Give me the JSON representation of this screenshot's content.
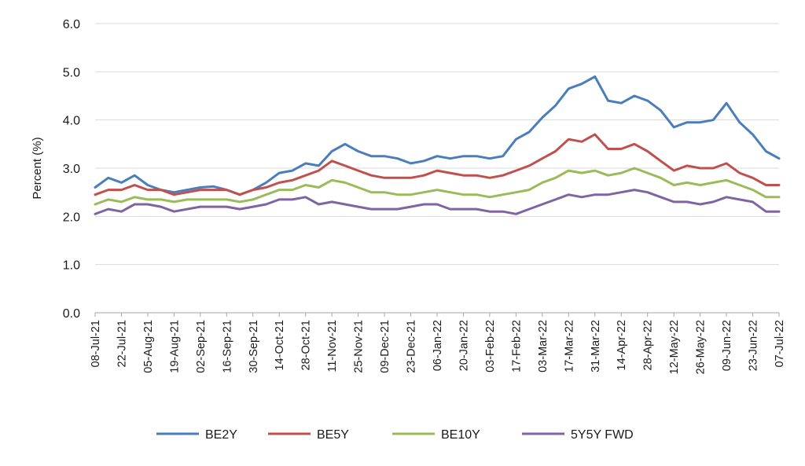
{
  "chart_data": {
    "type": "line",
    "title": "",
    "xlabel": "",
    "ylabel": "Percent (%)",
    "ylim": [
      0,
      6
    ],
    "y_ticks": [
      "0.0",
      "1.0",
      "2.0",
      "3.0",
      "4.0",
      "5.0",
      "6.0"
    ],
    "grid": "horizontal",
    "legend_position": "bottom",
    "x_tick_labels": [
      "08-Jul-21",
      "22-Jul-21",
      "05-Aug-21",
      "19-Aug-21",
      "02-Sep-21",
      "16-Sep-21",
      "30-Sep-21",
      "14-Oct-21",
      "28-Oct-21",
      "11-Nov-21",
      "25-Nov-21",
      "09-Dec-21",
      "23-Dec-21",
      "06-Jan-22",
      "20-Jan-22",
      "03-Feb-22",
      "17-Feb-22",
      "03-Mar-22",
      "17-Mar-22",
      "31-Mar-22",
      "14-Apr-22",
      "28-Apr-22",
      "12-May-22",
      "26-May-22",
      "09-Jun-22",
      "23-Jun-22",
      "07-Jul-22"
    ],
    "x_dates": [
      "08-Jul-21",
      "15-Jul-21",
      "22-Jul-21",
      "29-Jul-21",
      "05-Aug-21",
      "12-Aug-21",
      "19-Aug-21",
      "26-Aug-21",
      "02-Sep-21",
      "09-Sep-21",
      "16-Sep-21",
      "23-Sep-21",
      "30-Sep-21",
      "07-Oct-21",
      "14-Oct-21",
      "21-Oct-21",
      "28-Oct-21",
      "04-Nov-21",
      "11-Nov-21",
      "18-Nov-21",
      "25-Nov-21",
      "02-Dec-21",
      "09-Dec-21",
      "16-Dec-21",
      "23-Dec-21",
      "30-Dec-21",
      "06-Jan-22",
      "13-Jan-22",
      "20-Jan-22",
      "27-Jan-22",
      "03-Feb-22",
      "10-Feb-22",
      "17-Feb-22",
      "24-Feb-22",
      "03-Mar-22",
      "10-Mar-22",
      "17-Mar-22",
      "24-Mar-22",
      "31-Mar-22",
      "07-Apr-22",
      "14-Apr-22",
      "21-Apr-22",
      "28-Apr-22",
      "05-May-22",
      "12-May-22",
      "19-May-22",
      "26-May-22",
      "02-Jun-22",
      "09-Jun-22",
      "16-Jun-22",
      "23-Jun-22",
      "30-Jun-22",
      "07-Jul-22"
    ],
    "series": [
      {
        "name": "BE2Y",
        "color": "#4a7ebb",
        "values": [
          2.6,
          2.8,
          2.7,
          2.85,
          2.65,
          2.55,
          2.5,
          2.55,
          2.6,
          2.62,
          2.55,
          2.45,
          2.55,
          2.7,
          2.9,
          2.95,
          3.1,
          3.05,
          3.35,
          3.5,
          3.35,
          3.25,
          3.25,
          3.2,
          3.1,
          3.15,
          3.25,
          3.2,
          3.25,
          3.25,
          3.2,
          3.25,
          3.6,
          3.75,
          4.05,
          4.3,
          4.65,
          4.75,
          4.9,
          4.4,
          4.35,
          4.5,
          4.4,
          4.2,
          3.85,
          3.95,
          3.95,
          4.0,
          4.35,
          3.95,
          3.7,
          3.35,
          3.2
        ]
      },
      {
        "name": "BE5Y",
        "color": "#c0504d",
        "values": [
          2.45,
          2.55,
          2.55,
          2.65,
          2.55,
          2.55,
          2.45,
          2.5,
          2.55,
          2.55,
          2.55,
          2.45,
          2.55,
          2.6,
          2.7,
          2.75,
          2.85,
          2.95,
          3.15,
          3.05,
          2.95,
          2.85,
          2.8,
          2.8,
          2.8,
          2.85,
          2.95,
          2.9,
          2.85,
          2.85,
          2.8,
          2.85,
          2.95,
          3.05,
          3.2,
          3.35,
          3.6,
          3.55,
          3.7,
          3.4,
          3.4,
          3.5,
          3.35,
          3.15,
          2.95,
          3.05,
          3.0,
          3.0,
          3.1,
          2.9,
          2.8,
          2.65,
          2.65
        ]
      },
      {
        "name": "BE10Y",
        "color": "#9bbb59",
        "values": [
          2.25,
          2.35,
          2.3,
          2.4,
          2.35,
          2.35,
          2.3,
          2.35,
          2.35,
          2.35,
          2.35,
          2.3,
          2.35,
          2.45,
          2.55,
          2.55,
          2.65,
          2.6,
          2.75,
          2.7,
          2.6,
          2.5,
          2.5,
          2.45,
          2.45,
          2.5,
          2.55,
          2.5,
          2.45,
          2.45,
          2.4,
          2.45,
          2.5,
          2.55,
          2.7,
          2.8,
          2.95,
          2.9,
          2.95,
          2.85,
          2.9,
          3.0,
          2.9,
          2.8,
          2.65,
          2.7,
          2.65,
          2.7,
          2.75,
          2.65,
          2.55,
          2.4,
          2.4
        ]
      },
      {
        "name": "5Y5Y FWD",
        "color": "#8064a2",
        "values": [
          2.05,
          2.15,
          2.1,
          2.25,
          2.25,
          2.2,
          2.1,
          2.15,
          2.2,
          2.2,
          2.2,
          2.15,
          2.2,
          2.25,
          2.35,
          2.35,
          2.4,
          2.25,
          2.3,
          2.25,
          2.2,
          2.15,
          2.15,
          2.15,
          2.2,
          2.25,
          2.25,
          2.15,
          2.15,
          2.15,
          2.1,
          2.1,
          2.05,
          2.15,
          2.25,
          2.35,
          2.45,
          2.4,
          2.45,
          2.45,
          2.5,
          2.55,
          2.5,
          2.4,
          2.3,
          2.3,
          2.25,
          2.3,
          2.4,
          2.35,
          2.3,
          2.1,
          2.1
        ]
      }
    ]
  }
}
